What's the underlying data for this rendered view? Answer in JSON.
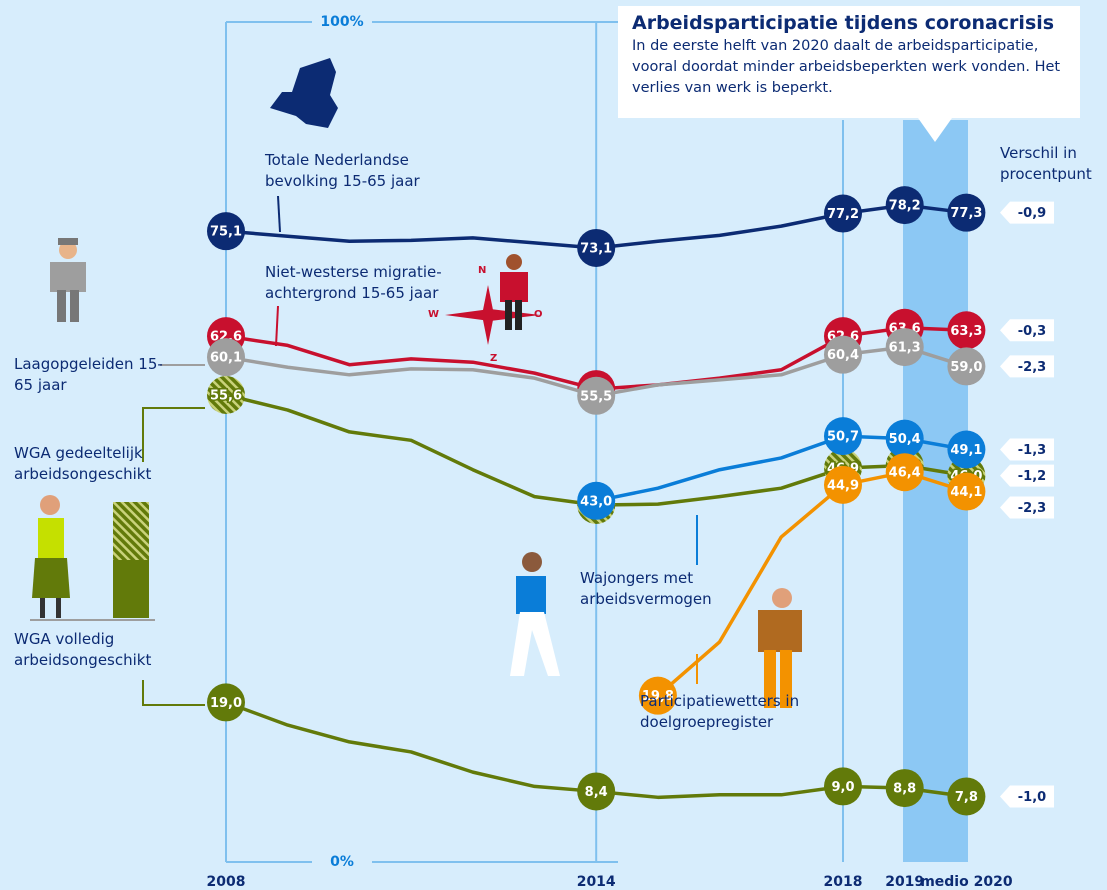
{
  "title": "Arbeidsparticipatie tijdens coronacrisis",
  "subtitle": "In de eerste helft van 2020 daalt de arbeidsparticipatie, vooral doordat minder arbeidsbeperkten werk vonden. Het verlies van werk is beperkt.",
  "chart_data": {
    "type": "line",
    "categories": [
      "2008",
      null,
      null,
      null,
      null,
      null,
      "2014",
      null,
      null,
      null,
      "2018",
      "2019",
      "medio 2020"
    ],
    "ylim": [
      0,
      100
    ],
    "yticks": [
      {
        "value": 0,
        "label": "0%"
      },
      {
        "value": 100,
        "label": "100%"
      }
    ],
    "change_header": "Verschil in procentpunt",
    "series": [
      {
        "name": "Totale Nederlandse bevolking 15-65 jaar",
        "color": "#0c2b73",
        "values": [
          75.1,
          74.5,
          73.9,
          74.0,
          74.3,
          73.7,
          73.1,
          73.9,
          74.6,
          75.7,
          77.2,
          78.2,
          77.3
        ],
        "value_labels": [
          "75,1",
          null,
          null,
          null,
          null,
          null,
          "73,1",
          null,
          null,
          null,
          "77,2",
          "78,2",
          "77,3"
        ],
        "change_label": "-0,9"
      },
      {
        "name": "Niet-westerse migratie-achtergrond 15-65 jaar",
        "color": "#c8102e",
        "values": [
          62.6,
          61.5,
          59.2,
          59.9,
          59.5,
          58.2,
          56.3,
          56.8,
          57.6,
          58.6,
          62.6,
          63.6,
          63.3
        ],
        "value_labels": [
          "62,6",
          null,
          null,
          null,
          null,
          null,
          "56,3",
          null,
          null,
          null,
          "62,6",
          "63,6",
          "63,3"
        ],
        "change_label": "-0,3"
      },
      {
        "name": "Laagopgeleiden 15-65 jaar",
        "color": "#9e9e9e",
        "values": [
          60.1,
          58.9,
          58.0,
          58.7,
          58.6,
          57.6,
          55.5,
          56.8,
          57.4,
          58.0,
          60.4,
          61.3,
          59.0
        ],
        "value_labels": [
          "60,1",
          null,
          null,
          null,
          null,
          null,
          "55,5",
          null,
          null,
          null,
          "60,4",
          "61,3",
          "59,0"
        ],
        "change_label": "-2,3"
      },
      {
        "name": "WGA gedeeltelijk arbeidsongeschikt",
        "color": "#627a0a",
        "hatch": true,
        "values": [
          55.6,
          53.8,
          51.2,
          50.2,
          46.7,
          43.5,
          42.5,
          42.6,
          43.5,
          44.5,
          46.9,
          47.2,
          46.0
        ],
        "value_labels": [
          "55,6",
          null,
          null,
          null,
          null,
          null,
          "42,5",
          null,
          null,
          null,
          "46,9",
          "47,2",
          "46,0"
        ],
        "change_label": "-1,2"
      },
      {
        "name": "Wajongers met arbeidsvermogen",
        "color": "#0a7dd8",
        "values": [
          null,
          null,
          null,
          null,
          null,
          null,
          43.0,
          44.5,
          46.7,
          48.1,
          50.7,
          50.4,
          49.1
        ],
        "value_labels": [
          null,
          null,
          null,
          null,
          null,
          null,
          "43,0",
          null,
          null,
          null,
          "50,7",
          "50,4",
          "49,1"
        ],
        "change_label": "-1,3"
      },
      {
        "name": "Participatiewetters in doelgroepregister",
        "color": "#f39200",
        "values": [
          null,
          null,
          null,
          null,
          null,
          null,
          null,
          19.8,
          26.2,
          38.7,
          44.9,
          46.4,
          44.1
        ],
        "value_labels": [
          null,
          null,
          null,
          null,
          null,
          null,
          null,
          "19,8",
          null,
          null,
          "44,9",
          "46,4",
          "44,1"
        ],
        "change_label": "-2,3"
      },
      {
        "name": "WGA volledig arbeidsongeschikt",
        "color": "#627a0a",
        "values": [
          19.0,
          16.3,
          14.3,
          13.1,
          10.7,
          9.0,
          8.4,
          7.7,
          8.0,
          8.0,
          9.0,
          8.8,
          7.8
        ],
        "value_labels": [
          "19,0",
          null,
          null,
          null,
          null,
          null,
          "8,4",
          null,
          null,
          null,
          "9,0",
          "8,8",
          "7,8"
        ],
        "change_label": "-1,0"
      }
    ]
  }
}
